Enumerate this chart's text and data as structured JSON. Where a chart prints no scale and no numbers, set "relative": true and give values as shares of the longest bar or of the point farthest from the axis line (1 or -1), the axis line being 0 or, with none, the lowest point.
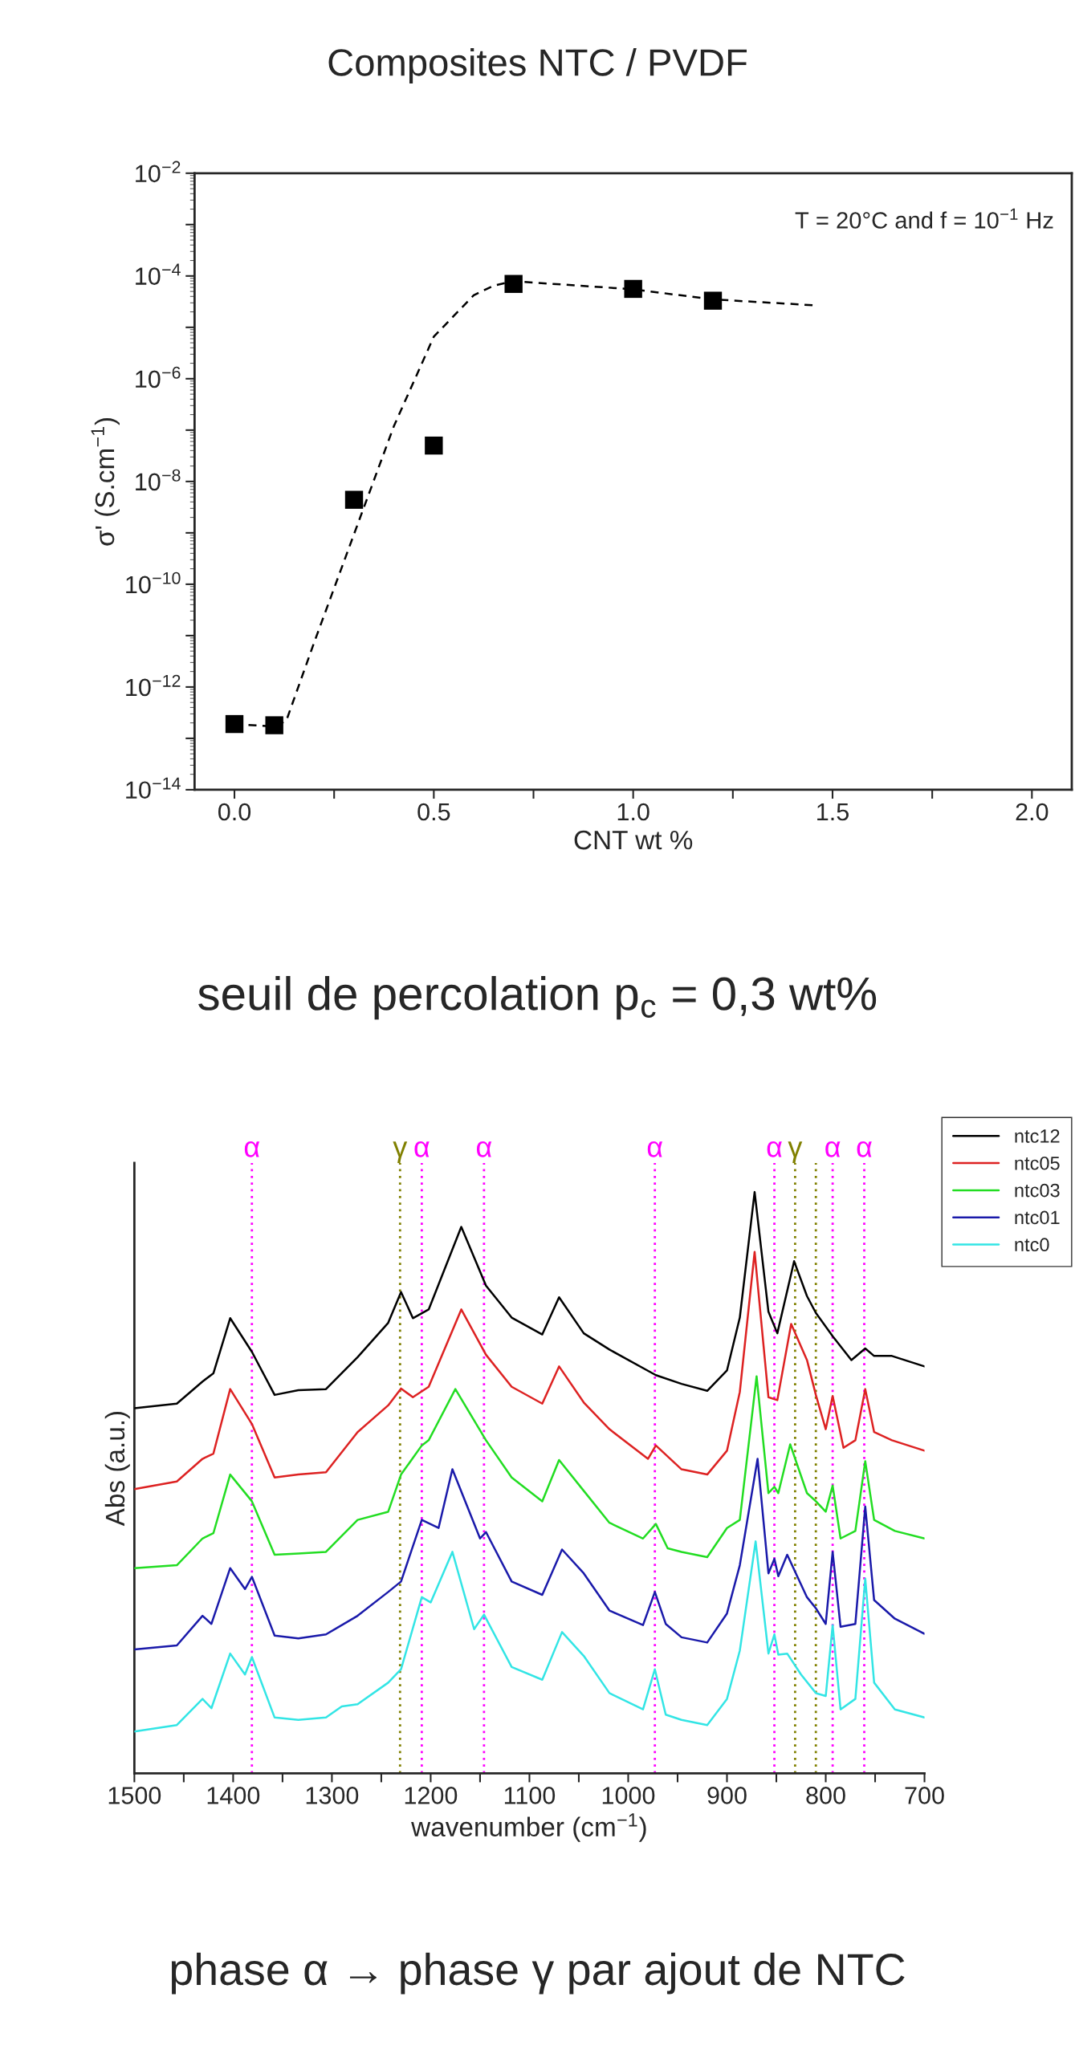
{
  "chart_data": [
    {
      "type": "scatter",
      "title": "Composites NTC / PVDF",
      "xlabel": "CNT wt %",
      "ylabel": "σ' (S.cm$^{−1}$)",
      "annotations": [
        "T = 20°C and f = 10$^{−1}$ Hz",
        "seuil de percolation p$_{c}$ = 0,3 wt%"
      ],
      "log": "y",
      "grid": false,
      "legend": false,
      "marker": "square",
      "xlim": [
        -0.1,
        2.1
      ],
      "xticks": [
        {
          "value": 0,
          "label": "0.0"
        },
        {
          "value": 0.25,
          "label": null
        },
        {
          "value": 0.5,
          "label": "0.5"
        },
        {
          "value": 0.75,
          "label": null
        },
        {
          "value": 1,
          "label": "1.0"
        },
        {
          "value": 1.25,
          "label": null
        },
        {
          "value": 1.5,
          "label": "1.5"
        },
        {
          "value": 1.75,
          "label": null
        },
        {
          "value": 2,
          "label": "2.0"
        }
      ],
      "ylim": [
        1e-14,
        0.01
      ],
      "yticks": [
        {
          "value": 1e-14,
          "label": "10$^{−14}$"
        },
        {
          "value": 1e-13,
          "label": null
        },
        {
          "value": 1e-12,
          "label": "10$^{−12}$"
        },
        {
          "value": 1e-11,
          "label": null
        },
        {
          "value": 1e-10,
          "label": "10$^{−10}$"
        },
        {
          "value": 1e-09,
          "label": null
        },
        {
          "value": 1e-08,
          "label": "10$^{−8}$"
        },
        {
          "value": 1e-07,
          "label": null
        },
        {
          "value": 1e-06,
          "label": "10$^{−6}$"
        },
        {
          "value": 1e-05,
          "label": null
        },
        {
          "value": 0.0001,
          "label": "10$^{−4}$"
        },
        {
          "value": 0.001,
          "label": null
        },
        {
          "value": 0.01,
          "label": "10$^{−2}$"
        }
      ],
      "series": [
        {
          "type": "scatter",
          "color": "#000000",
          "x": [
            0,
            0.1,
            0.3,
            0.5,
            0.7,
            1.0,
            1.2
          ],
          "values": [
            1.9e-13,
            1.8e-13,
            4.4e-09,
            5e-08,
            7e-05,
            5.6e-05,
            3.3e-05
          ]
        },
        {
          "type": "line",
          "color": "#000000",
          "line_style": "dashed",
          "marker": "none",
          "x": [
            0,
            0.1,
            0.13,
            0.2,
            0.3,
            0.4,
            0.5,
            0.6,
            0.65,
            0.7,
            1.0,
            1.2,
            1.45
          ],
          "values": [
            1.9e-13,
            1.7e-13,
            2.2e-13,
            7.4e-12,
            9.5e-10,
            1.2e-07,
            6.6e-06,
            4.2e-05,
            6.5e-05,
            7.9e-05,
            5.5e-05,
            3.5e-05,
            2.7e-05
          ]
        }
      ]
    },
    {
      "type": "line",
      "relative": true,
      "xlabel": "wavenumber (cm$^{−1}$)",
      "ylabel": "Abs (a.u.)",
      "annotations": [
        "phase α → phase γ par ajout de NTC"
      ],
      "grid": false,
      "legend": "top right",
      "tick_labels": "x",
      "marker": "none",
      "line_style": "solid",
      "xlim": [
        1500,
        700
      ],
      "xticks": [
        1500,
        {
          "value": 1450,
          "label": null
        },
        1400,
        {
          "value": 1350,
          "label": null
        },
        1300,
        {
          "value": 1250,
          "label": null
        },
        1200,
        {
          "value": 1150,
          "label": null
        },
        1100,
        {
          "value": 1050,
          "label": null
        },
        1000,
        {
          "value": 950,
          "label": null
        },
        900,
        {
          "value": 850,
          "label": null
        },
        800,
        {
          "value": 750,
          "label": null
        },
        700
      ],
      "ref_lines": [
        {
          "axis": "x",
          "value": 1381,
          "label": "α",
          "color": "#ff00ff",
          "line_style": "dotted"
        },
        {
          "axis": "x",
          "value": 1231,
          "label": "γ",
          "color": "#808000",
          "line_style": "dotted"
        },
        {
          "axis": "x",
          "value": 1209,
          "label": "α",
          "color": "#ff00ff",
          "line_style": "dotted"
        },
        {
          "axis": "x",
          "value": 1146,
          "label": "α",
          "color": "#ff00ff",
          "line_style": "dotted"
        },
        {
          "axis": "x",
          "value": 973,
          "label": "α",
          "color": "#ff00ff",
          "line_style": "dotted"
        },
        {
          "axis": "x",
          "value": 852,
          "label": "α",
          "color": "#ff00ff",
          "line_style": "dotted"
        },
        {
          "axis": "x",
          "value": 831,
          "label": "γ",
          "color": "#808000",
          "line_style": "dotted"
        },
        {
          "axis": "x",
          "value": 810,
          "label": null,
          "color": "#808000",
          "line_style": "dotted"
        },
        {
          "axis": "x",
          "value": 793,
          "label": "α",
          "color": "#ff00ff",
          "line_style": "dotted"
        },
        {
          "axis": "x",
          "value": 761,
          "label": "α",
          "color": "#ff00ff",
          "line_style": "dotted"
        }
      ],
      "series": [
        {
          "name": "ntc12",
          "color": "#000000",
          "x": [
            1500,
            1457,
            1431,
            1420,
            1403,
            1381,
            1358,
            1334,
            1306,
            1274,
            1243,
            1230,
            1218,
            1202,
            1169,
            1144,
            1118,
            1087,
            1070,
            1045,
            1019,
            972,
            946,
            920,
            900,
            887,
            872,
            858,
            849,
            832,
            819,
            810,
            793,
            774,
            760,
            751,
            733,
            700
          ],
          "values": [
            0.628,
            0.636,
            0.674,
            0.688,
            0.783,
            0.725,
            0.651,
            0.659,
            0.661,
            0.716,
            0.775,
            0.828,
            0.783,
            0.798,
            0.94,
            0.839,
            0.784,
            0.755,
            0.819,
            0.757,
            0.729,
            0.685,
            0.67,
            0.658,
            0.693,
            0.784,
            1.0,
            0.794,
            0.757,
            0.881,
            0.821,
            0.792,
            0.752,
            0.711,
            0.731,
            0.718,
            0.718,
            0.7
          ]
        },
        {
          "name": "ntc05",
          "color": "#dd2222",
          "x": [
            1500,
            1457,
            1431,
            1420,
            1403,
            1381,
            1358,
            1334,
            1306,
            1274,
            1243,
            1230,
            1218,
            1202,
            1169,
            1144,
            1118,
            1087,
            1070,
            1045,
            1019,
            980,
            972,
            946,
            920,
            900,
            887,
            872,
            858,
            849,
            835,
            819,
            810,
            800,
            793,
            782,
            770,
            760,
            751,
            733,
            700
          ],
          "values": [
            0.489,
            0.502,
            0.541,
            0.55,
            0.661,
            0.601,
            0.509,
            0.514,
            0.518,
            0.587,
            0.633,
            0.662,
            0.647,
            0.665,
            0.798,
            0.72,
            0.665,
            0.636,
            0.7,
            0.638,
            0.592,
            0.541,
            0.564,
            0.523,
            0.514,
            0.555,
            0.656,
            0.897,
            0.647,
            0.642,
            0.773,
            0.711,
            0.651,
            0.592,
            0.649,
            0.56,
            0.573,
            0.661,
            0.587,
            0.573,
            0.555
          ]
        },
        {
          "name": "ntc03",
          "color": "#22dd22",
          "x": [
            1500,
            1457,
            1431,
            1420,
            1403,
            1381,
            1358,
            1334,
            1306,
            1274,
            1243,
            1230,
            1209,
            1202,
            1175,
            1144,
            1118,
            1087,
            1070,
            1045,
            1019,
            985,
            972,
            960,
            946,
            920,
            900,
            887,
            870,
            858,
            852,
            848,
            836,
            819,
            810,
            800,
            793,
            785,
            770,
            760,
            751,
            730,
            700
          ],
          "values": [
            0.353,
            0.358,
            0.404,
            0.413,
            0.514,
            0.468,
            0.376,
            0.378,
            0.381,
            0.436,
            0.45,
            0.514,
            0.564,
            0.573,
            0.661,
            0.573,
            0.509,
            0.468,
            0.539,
            0.486,
            0.431,
            0.404,
            0.429,
            0.387,
            0.381,
            0.372,
            0.422,
            0.436,
            0.683,
            0.482,
            0.493,
            0.482,
            0.566,
            0.482,
            0.468,
            0.45,
            0.495,
            0.404,
            0.417,
            0.537,
            0.436,
            0.417,
            0.404
          ]
        },
        {
          "name": "ntc01",
          "color": "#1a1aaa",
          "x": [
            1500,
            1457,
            1431,
            1422,
            1403,
            1388,
            1381,
            1358,
            1334,
            1306,
            1274,
            1243,
            1230,
            1209,
            1192,
            1178,
            1150,
            1144,
            1118,
            1087,
            1067,
            1045,
            1019,
            985,
            973,
            962,
            946,
            920,
            900,
            887,
            869,
            858,
            852,
            848,
            839,
            819,
            810,
            800,
            793,
            785,
            770,
            760,
            751,
            730,
            700
          ],
          "values": [
            0.213,
            0.22,
            0.271,
            0.257,
            0.353,
            0.317,
            0.338,
            0.237,
            0.232,
            0.239,
            0.271,
            0.312,
            0.33,
            0.436,
            0.422,
            0.523,
            0.404,
            0.415,
            0.33,
            0.307,
            0.385,
            0.344,
            0.28,
            0.255,
            0.312,
            0.257,
            0.234,
            0.225,
            0.275,
            0.358,
            0.541,
            0.344,
            0.369,
            0.339,
            0.376,
            0.303,
            0.284,
            0.257,
            0.381,
            0.252,
            0.257,
            0.459,
            0.298,
            0.266,
            0.24
          ]
        },
        {
          "name": "ntc0",
          "color": "#33e5e5",
          "x": [
            1500,
            1457,
            1431,
            1422,
            1403,
            1388,
            1381,
            1358,
            1334,
            1306,
            1290,
            1274,
            1243,
            1230,
            1209,
            1200,
            1178,
            1156,
            1146,
            1118,
            1087,
            1067,
            1045,
            1019,
            985,
            973,
            962,
            946,
            920,
            900,
            887,
            871,
            858,
            852,
            848,
            839,
            825,
            810,
            800,
            793,
            785,
            770,
            760,
            751,
            730,
            700
          ],
          "values": [
            0.072,
            0.083,
            0.128,
            0.112,
            0.206,
            0.17,
            0.2,
            0.096,
            0.092,
            0.096,
            0.115,
            0.119,
            0.156,
            0.179,
            0.303,
            0.294,
            0.381,
            0.248,
            0.273,
            0.183,
            0.161,
            0.243,
            0.202,
            0.138,
            0.11,
            0.179,
            0.101,
            0.092,
            0.083,
            0.128,
            0.211,
            0.399,
            0.206,
            0.239,
            0.204,
            0.206,
            0.17,
            0.138,
            0.133,
            0.255,
            0.11,
            0.128,
            0.335,
            0.156,
            0.11,
            0.096
          ]
        }
      ]
    }
  ]
}
